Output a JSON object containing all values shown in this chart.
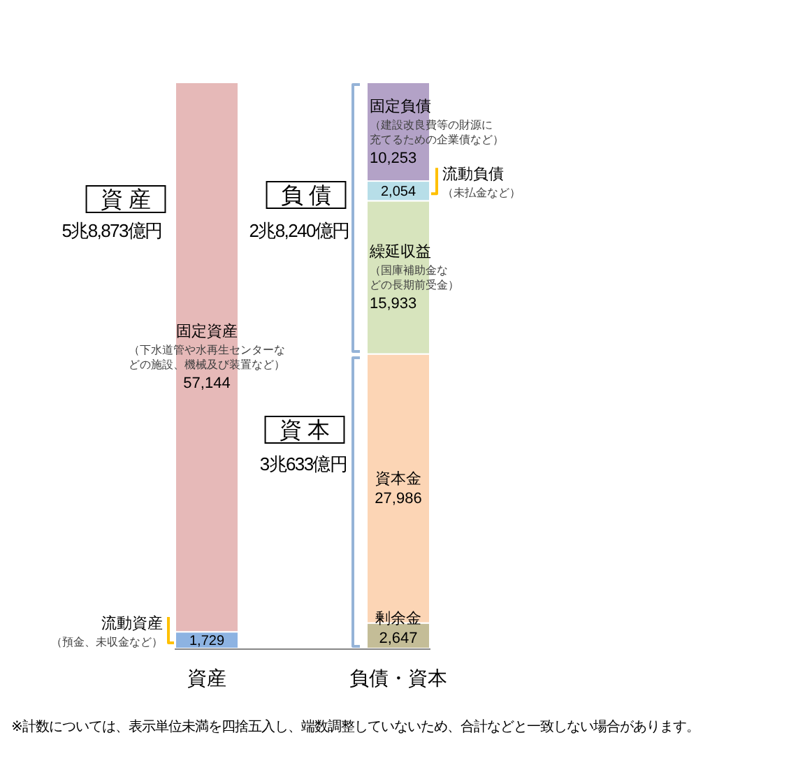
{
  "chart_data": {
    "type": "bar",
    "stacked": true,
    "categories": [
      "資産",
      "負債・資本"
    ],
    "ylim": [
      0,
      58873
    ],
    "tick_labels": "x",
    "series": [
      {
        "name": "流動資産（預金、未収金など）",
        "color": "#8db3e2",
        "values": [
          1729,
          null
        ],
        "value_labels": [
          "1,729",
          null
        ]
      },
      {
        "name": "固定資産（下水道管や水再生センターなどの施設、機械及び装置など）",
        "color": "#e6b9b8",
        "values": [
          57144,
          null
        ],
        "value_labels": [
          "57,144",
          null
        ]
      },
      {
        "name": "剰余金",
        "color": "#c4bd97",
        "values": [
          null,
          2647
        ],
        "value_labels": [
          null,
          "2,647"
        ]
      },
      {
        "name": "資本金",
        "color": "#fcd5b5",
        "values": [
          null,
          27986
        ],
        "value_labels": [
          null,
          "27,986"
        ]
      },
      {
        "name": "繰延収益（国庫補助金などの長期前受金）",
        "color": "#d7e4bd",
        "values": [
          null,
          15933
        ],
        "value_labels": [
          null,
          "15,933"
        ]
      },
      {
        "name": "流動負債（未払金など）",
        "color": "#b7dee8",
        "values": [
          null,
          2054
        ],
        "value_labels": [
          null,
          "2,054"
        ]
      },
      {
        "name": "固定負債（建設改良費等の財源に充てるための企業債など）",
        "color": "#b3a2c7",
        "values": [
          null,
          10253
        ],
        "value_labels": [
          null,
          "10,253"
        ]
      }
    ],
    "annotations": [
      "資 産",
      "5兆8,873億円",
      "負 債",
      "2兆8,240億円",
      "資 本",
      "3兆633億円",
      "※計数については、表示単位未満を四捨五入し、端数調整していないため、合計などと一致しない場合があります。"
    ]
  }
}
